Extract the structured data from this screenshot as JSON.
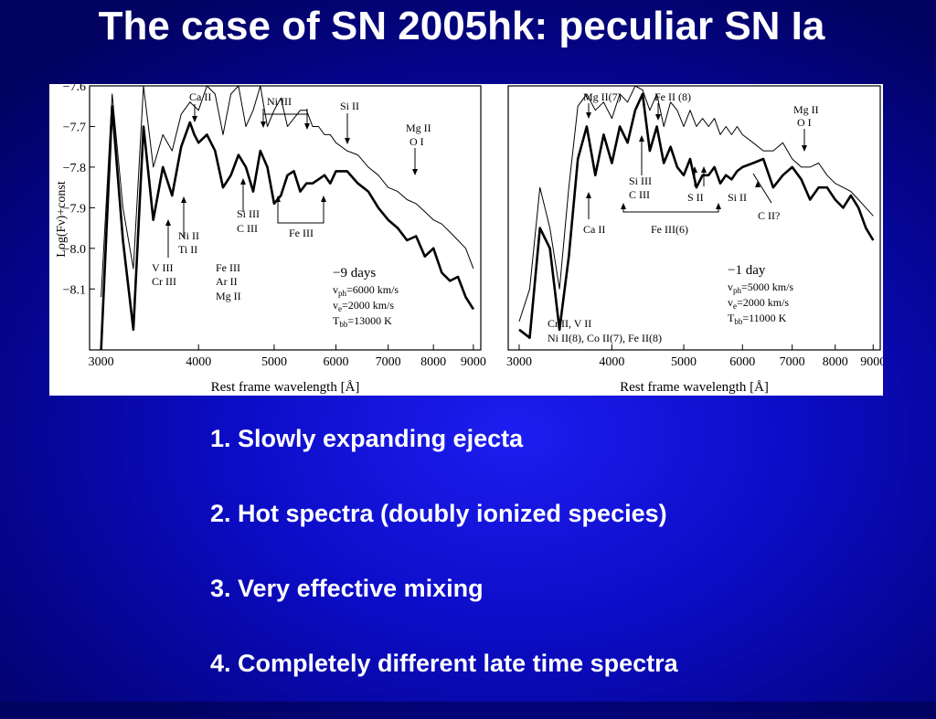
{
  "slide": {
    "title": "The case of SN 2005hk: peculiar SN Ia",
    "bullets": [
      "1. Slowly expanding ejecta",
      "2. Hot spectra (doubly ionized species)",
      "3. Very effective mixing",
      "4. Completely different late time spectra"
    ],
    "background_color": "#0a0ac0",
    "text_color": "#ffffff"
  },
  "chart_data": [
    {
      "type": "line",
      "title": "",
      "xlabel": "Rest frame wavelength [Å]",
      "ylabel": "Log(Fν)+const",
      "x_scale": "log",
      "xlim": [
        2900,
        9200
      ],
      "ylim": [
        -8.25,
        -7.6
      ],
      "x_ticks": [
        3000,
        4000,
        5000,
        6000,
        7000,
        8000,
        9000
      ],
      "y_ticks": [
        -7.6,
        -7.7,
        -7.8,
        -7.9,
        -8.0,
        -8.1
      ],
      "y_tick_labels": [
        "−7.6",
        "−7.7",
        "−7.8",
        "−7.9",
        "−8.0",
        "−8.1"
      ],
      "grid": false,
      "series": [
        {
          "style": "thick",
          "x": [
            3000,
            3100,
            3200,
            3300,
            3400,
            3500,
            3600,
            3700,
            3800,
            3900,
            3950,
            4000,
            4100,
            4200,
            4300,
            4400,
            4500,
            4600,
            4700,
            4800,
            4900,
            5000,
            5100,
            5200,
            5300,
            5400,
            5500,
            5600,
            5700,
            5800,
            5900,
            6000,
            6200,
            6400,
            6600,
            6800,
            7000,
            7200,
            7400,
            7600,
            7800,
            8000,
            8200,
            8400,
            8600,
            8800,
            9000
          ],
          "y": [
            -8.25,
            -7.65,
            -7.98,
            -8.2,
            -7.7,
            -7.93,
            -7.8,
            -7.87,
            -7.75,
            -7.69,
            -7.72,
            -7.74,
            -7.72,
            -7.76,
            -7.85,
            -7.82,
            -7.77,
            -7.8,
            -7.86,
            -7.76,
            -7.8,
            -7.89,
            -7.87,
            -7.82,
            -7.81,
            -7.86,
            -7.84,
            -7.84,
            -7.83,
            -7.82,
            -7.84,
            -7.81,
            -7.81,
            -7.84,
            -7.86,
            -7.9,
            -7.93,
            -7.95,
            -7.98,
            -7.97,
            -8.02,
            -8.0,
            -8.06,
            -8.08,
            -8.07,
            -8.12,
            -8.15
          ]
        },
        {
          "style": "thin",
          "x": [
            3000,
            3100,
            3200,
            3300,
            3400,
            3500,
            3600,
            3700,
            3800,
            3900,
            4000,
            4100,
            4200,
            4300,
            4400,
            4500,
            4600,
            4700,
            4800,
            4900,
            5000,
            5100,
            5200,
            5300,
            5400,
            5500,
            5600,
            5700,
            5800,
            5900,
            6000,
            6200,
            6400,
            6600,
            6800,
            7000,
            7200,
            7400,
            7600,
            7800,
            8000,
            8200,
            8400,
            8600,
            8800,
            9000
          ],
          "y": [
            -8.12,
            -7.62,
            -7.9,
            -8.05,
            -7.6,
            -7.8,
            -7.72,
            -7.76,
            -7.67,
            -7.64,
            -7.66,
            -7.6,
            -7.62,
            -7.72,
            -7.62,
            -7.6,
            -7.7,
            -7.66,
            -7.6,
            -7.7,
            -7.66,
            -7.63,
            -7.7,
            -7.68,
            -7.66,
            -7.66,
            -7.7,
            -7.7,
            -7.72,
            -7.72,
            -7.74,
            -7.76,
            -7.77,
            -7.8,
            -7.82,
            -7.85,
            -7.86,
            -7.88,
            -7.89,
            -7.91,
            -7.93,
            -7.94,
            -7.96,
            -7.98,
            -8.0,
            -8.05
          ]
        }
      ],
      "annotations": [
        {
          "text": "−9 days"
        },
        {
          "text": "vph=6000 km/s",
          "main": "v",
          "sub": "ph",
          "rest": "=6000 km/s"
        },
        {
          "text": "ve=2000 km/s",
          "main": "v",
          "sub": "e",
          "rest": "=2000 km/s"
        },
        {
          "text": "Tbb=13000 K",
          "main": "T",
          "sub": "bb",
          "rest": "=13000 K"
        }
      ],
      "line_ids": [
        "Ca II",
        "Ni III",
        "Si II",
        "Mg II",
        "O I",
        "Ni II",
        "Ti II",
        "V III",
        "Cr III",
        "Si III",
        "C III",
        "Fe III",
        "Ar II",
        "Mg II",
        "Fe III"
      ]
    },
    {
      "type": "line",
      "title": "",
      "xlabel": "Rest frame wavelength [Å]",
      "ylabel": "",
      "x_scale": "log",
      "xlim": [
        2900,
        9200
      ],
      "ylim": [
        -8.25,
        -7.6
      ],
      "x_ticks": [
        3000,
        4000,
        5000,
        6000,
        7000,
        8000,
        9000
      ],
      "grid": false,
      "series": [
        {
          "style": "thick",
          "x": [
            3000,
            3100,
            3200,
            3300,
            3400,
            3500,
            3600,
            3700,
            3800,
            3900,
            4000,
            4100,
            4200,
            4300,
            4400,
            4500,
            4600,
            4700,
            4800,
            4900,
            5000,
            5100,
            5200,
            5300,
            5400,
            5500,
            5600,
            5700,
            5800,
            5900,
            6000,
            6200,
            6400,
            6600,
            6800,
            7000,
            7200,
            7400,
            7600,
            7800,
            8000,
            8200,
            8400,
            8600,
            8800,
            9000
          ],
          "y": [
            -8.2,
            -8.22,
            -7.95,
            -8.0,
            -8.2,
            -8.02,
            -7.78,
            -7.7,
            -7.82,
            -7.72,
            -7.79,
            -7.7,
            -7.74,
            -7.66,
            -7.62,
            -7.76,
            -7.7,
            -7.79,
            -7.75,
            -7.8,
            -7.82,
            -7.78,
            -7.85,
            -7.82,
            -7.82,
            -7.8,
            -7.84,
            -7.82,
            -7.83,
            -7.81,
            -7.8,
            -7.79,
            -7.78,
            -7.85,
            -7.82,
            -7.8,
            -7.83,
            -7.88,
            -7.85,
            -7.85,
            -7.88,
            -7.9,
            -7.87,
            -7.9,
            -7.95,
            -7.98
          ]
        },
        {
          "style": "thin",
          "x": [
            3000,
            3100,
            3200,
            3300,
            3400,
            3500,
            3600,
            3700,
            3800,
            3900,
            4000,
            4100,
            4200,
            4300,
            4400,
            4500,
            4600,
            4700,
            4800,
            4900,
            5000,
            5100,
            5200,
            5300,
            5400,
            5500,
            5600,
            5700,
            5800,
            5900,
            6000,
            6200,
            6400,
            6600,
            6800,
            7000,
            7200,
            7400,
            7600,
            7800,
            8000,
            8200,
            8400,
            8600,
            8800,
            9000
          ],
          "y": [
            -8.18,
            -8.1,
            -7.85,
            -7.95,
            -8.1,
            -7.85,
            -7.65,
            -7.62,
            -7.66,
            -7.64,
            -7.68,
            -7.62,
            -7.64,
            -7.6,
            -7.61,
            -7.66,
            -7.62,
            -7.7,
            -7.64,
            -7.66,
            -7.7,
            -7.66,
            -7.7,
            -7.68,
            -7.7,
            -7.68,
            -7.72,
            -7.7,
            -7.72,
            -7.7,
            -7.72,
            -7.74,
            -7.76,
            -7.76,
            -7.74,
            -7.78,
            -7.8,
            -7.8,
            -7.79,
            -7.82,
            -7.84,
            -7.85,
            -7.86,
            -7.88,
            -7.9,
            -7.92
          ]
        }
      ],
      "annotations": [
        {
          "text": "−1 day"
        },
        {
          "text": "vph=5000 km/s",
          "main": "v",
          "sub": "ph",
          "rest": "=5000 km/s"
        },
        {
          "text": "ve=2000 km/s",
          "main": "v",
          "sub": "e",
          "rest": "=2000 km/s"
        },
        {
          "text": "Tbb=11000 K",
          "main": "T",
          "sub": "bb",
          "rest": "=11000 K"
        }
      ],
      "line_ids": [
        "Mg II(7)",
        "Fe II (8)",
        "Mg II",
        "O I",
        "Si III",
        "C III",
        "S II",
        "Si II",
        "C II?",
        "Ca II",
        "Fe III(6)",
        "Cr II, V II",
        "Ni II(8), Co II(7), Fe II(8)"
      ]
    }
  ]
}
